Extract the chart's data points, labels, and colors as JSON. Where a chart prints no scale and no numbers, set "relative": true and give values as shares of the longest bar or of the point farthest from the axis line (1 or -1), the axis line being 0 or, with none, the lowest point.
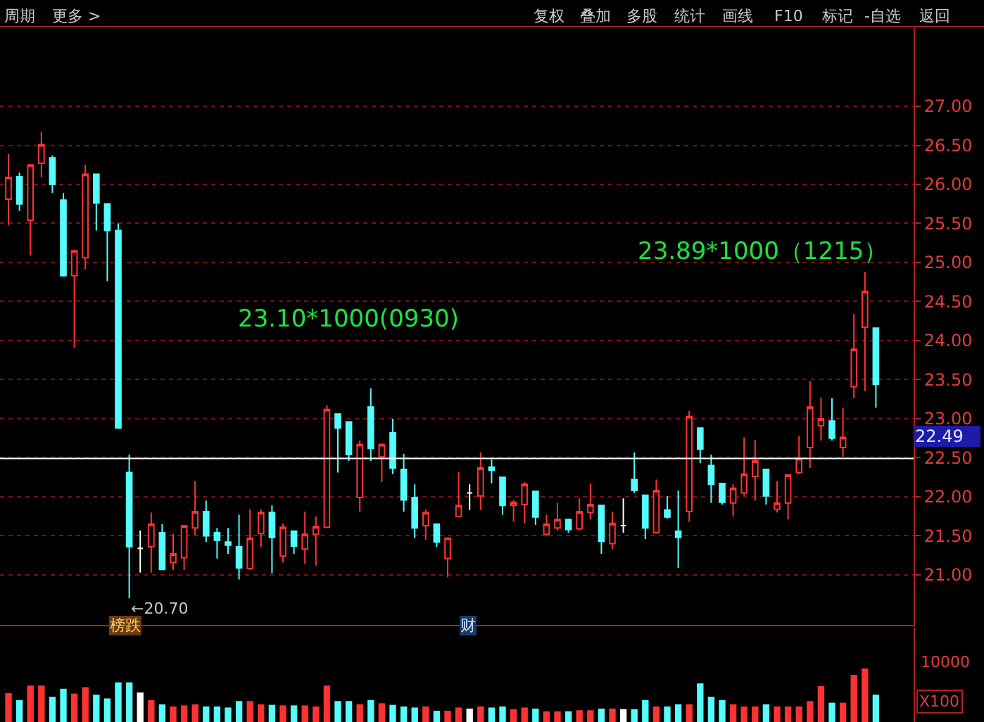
{
  "chart_data": [
    {
      "type": "candlestick",
      "categories": [
        null,
        null,
        null,
        null,
        null,
        null,
        null,
        null,
        null,
        null,
        null,
        null,
        null,
        null,
        null,
        null,
        null,
        null,
        null,
        null,
        null,
        null,
        null,
        null,
        null,
        null,
        null,
        null,
        null,
        null,
        null,
        null,
        null,
        null,
        null,
        null,
        null,
        null,
        null,
        null,
        null,
        null,
        null,
        null,
        null,
        null,
        null,
        null,
        null,
        null,
        null,
        null,
        null,
        null,
        null,
        null,
        null,
        null,
        null,
        null,
        null,
        null,
        null,
        null,
        null,
        null,
        null,
        null,
        null,
        null,
        null,
        null,
        null,
        null,
        null,
        null,
        null,
        null,
        null,
        null
      ],
      "ohlc": [
        [
          25.81,
          26.39,
          25.48,
          26.09
        ],
        [
          26.1,
          26.15,
          25.66,
          25.75
        ],
        [
          25.54,
          26.25,
          25.09,
          26.25
        ],
        [
          26.27,
          26.67,
          26.09,
          26.51
        ],
        [
          26.34,
          26.37,
          25.89,
          26.0
        ],
        [
          25.8,
          25.89,
          24.82,
          24.83
        ],
        [
          24.83,
          25.15,
          23.91,
          25.15
        ],
        [
          25.06,
          26.25,
          24.91,
          26.13
        ],
        [
          26.13,
          26.13,
          25.41,
          25.76
        ],
        [
          25.75,
          25.75,
          24.76,
          25.41
        ],
        [
          25.41,
          25.5,
          22.88,
          22.88
        ],
        [
          22.31,
          22.54,
          20.7,
          21.36
        ],
        [
          21.34,
          21.57,
          21.03,
          21.34
        ],
        [
          21.36,
          21.8,
          21.03,
          21.65
        ],
        [
          21.54,
          21.65,
          21.06,
          21.07
        ],
        [
          21.16,
          21.53,
          21.06,
          21.27
        ],
        [
          21.22,
          21.63,
          21.06,
          21.63
        ],
        [
          21.6,
          22.2,
          21.51,
          21.81
        ],
        [
          21.81,
          21.95,
          21.42,
          21.5
        ],
        [
          21.54,
          21.6,
          21.21,
          21.44
        ],
        [
          21.42,
          21.6,
          21.27,
          21.38
        ],
        [
          21.36,
          21.77,
          20.94,
          21.09
        ],
        [
          21.08,
          21.84,
          21.06,
          21.47
        ],
        [
          21.53,
          21.84,
          21.36,
          21.8
        ],
        [
          21.8,
          21.89,
          21.02,
          21.48
        ],
        [
          21.24,
          21.66,
          21.16,
          21.61
        ],
        [
          21.56,
          21.56,
          21.27,
          21.37
        ],
        [
          21.33,
          21.81,
          21.14,
          21.52
        ],
        [
          21.52,
          21.75,
          21.12,
          21.62
        ],
        [
          21.61,
          23.17,
          21.61,
          23.12
        ],
        [
          23.06,
          23.06,
          22.31,
          22.88
        ],
        [
          22.96,
          22.96,
          22.46,
          22.54
        ],
        [
          21.99,
          22.72,
          21.81,
          22.67
        ],
        [
          23.15,
          23.39,
          22.46,
          22.62
        ],
        [
          22.51,
          22.67,
          22.19,
          22.67
        ],
        [
          22.82,
          23.0,
          22.29,
          22.37
        ],
        [
          22.35,
          22.55,
          21.81,
          21.96
        ],
        [
          21.99,
          22.16,
          21.47,
          21.6
        ],
        [
          21.63,
          21.84,
          21.45,
          21.8
        ],
        [
          21.65,
          21.65,
          21.36,
          21.42
        ],
        [
          21.21,
          21.48,
          20.97,
          21.47
        ],
        [
          21.75,
          22.32,
          21.75,
          21.89
        ],
        [
          22.05,
          22.16,
          21.83,
          22.05
        ],
        [
          22.01,
          22.57,
          21.83,
          22.37
        ],
        [
          22.38,
          22.48,
          22.17,
          22.34
        ],
        [
          22.25,
          22.25,
          21.77,
          21.89
        ],
        [
          21.89,
          21.96,
          21.68,
          21.93
        ],
        [
          21.9,
          22.19,
          21.66,
          22.16
        ],
        [
          22.07,
          22.07,
          21.64,
          21.74
        ],
        [
          21.52,
          21.77,
          21.5,
          21.65
        ],
        [
          21.6,
          21.92,
          21.57,
          21.71
        ],
        [
          21.71,
          21.72,
          21.54,
          21.58
        ],
        [
          21.59,
          21.98,
          21.57,
          21.81
        ],
        [
          21.8,
          22.17,
          21.71,
          21.9
        ],
        [
          21.89,
          21.89,
          21.27,
          21.43
        ],
        [
          21.4,
          21.81,
          21.33,
          21.66
        ],
        [
          21.63,
          21.98,
          21.54,
          21.63
        ],
        [
          22.22,
          22.57,
          22.05,
          22.08
        ],
        [
          22.02,
          22.02,
          21.46,
          21.6
        ],
        [
          21.54,
          22.22,
          21.54,
          22.08
        ],
        [
          21.83,
          22.01,
          21.72,
          21.74
        ],
        [
          21.56,
          22.08,
          21.09,
          21.48
        ],
        [
          21.81,
          23.1,
          21.68,
          23.03
        ],
        [
          22.88,
          22.88,
          22.43,
          22.61
        ],
        [
          22.4,
          22.54,
          21.92,
          22.16
        ],
        [
          22.17,
          22.17,
          21.9,
          21.93
        ],
        [
          21.92,
          22.16,
          21.75,
          22.11
        ],
        [
          22.05,
          22.76,
          22.01,
          22.29
        ],
        [
          22.26,
          22.73,
          21.95,
          22.46
        ],
        [
          22.35,
          22.35,
          21.9,
          22.01
        ],
        [
          21.84,
          22.2,
          21.8,
          21.92
        ],
        [
          21.92,
          22.28,
          21.71,
          22.28
        ],
        [
          22.31,
          22.78,
          22.29,
          22.49
        ],
        [
          22.63,
          23.48,
          22.37,
          23.15
        ],
        [
          22.91,
          23.27,
          22.72,
          23.0
        ],
        [
          22.97,
          23.26,
          22.72,
          22.75
        ],
        [
          22.63,
          23.14,
          22.51,
          22.76
        ],
        [
          23.41,
          24.34,
          23.26,
          23.89
        ],
        [
          24.17,
          24.88,
          23.35,
          24.63
        ],
        [
          24.16,
          24.16,
          23.14,
          23.44
        ]
      ],
      "colors": [
        "#ff3232",
        "#54fcfc",
        "#ff3232",
        "#ff3232",
        "#54fcfc",
        "#54fcfc",
        "#ff3232",
        "#ff3232",
        "#54fcfc",
        "#54fcfc",
        "#54fcfc",
        "#54fcfc",
        "#ffffff",
        "#ff3232",
        "#54fcfc",
        "#ff3232",
        "#ff3232",
        "#ff3232",
        "#54fcfc",
        "#54fcfc",
        "#54fcfc",
        "#54fcfc",
        "#ff3232",
        "#ff3232",
        "#54fcfc",
        "#ff3232",
        "#54fcfc",
        "#ff3232",
        "#ff3232",
        "#ff3232",
        "#54fcfc",
        "#54fcfc",
        "#ff3232",
        "#54fcfc",
        "#ff3232",
        "#54fcfc",
        "#54fcfc",
        "#54fcfc",
        "#ff3232",
        "#54fcfc",
        "#ff3232",
        "#ff3232",
        "#ffffff",
        "#ff3232",
        "#54fcfc",
        "#54fcfc",
        "#ff3232",
        "#ff3232",
        "#54fcfc",
        "#ff3232",
        "#ff3232",
        "#54fcfc",
        "#ff3232",
        "#ff3232",
        "#54fcfc",
        "#ff3232",
        "#ffffff",
        "#54fcfc",
        "#54fcfc",
        "#ff3232",
        "#54fcfc",
        "#54fcfc",
        "#ff3232",
        "#54fcfc",
        "#54fcfc",
        "#54fcfc",
        "#ff3232",
        "#ff3232",
        "#ff3232",
        "#54fcfc",
        "#ff3232",
        "#ff3232",
        "#ff3232",
        "#ff3232",
        "#ff3232",
        "#54fcfc",
        "#ff3232",
        "#ff3232",
        "#ff3232",
        "#54fcfc"
      ],
      "ylim": [
        20.36,
        28.0
      ],
      "yticks": [
        {
          "value": 21,
          "label": "21.00"
        },
        {
          "value": 21.5,
          "label": "21.50"
        },
        {
          "value": 22,
          "label": "22.00"
        },
        {
          "value": 22.5,
          "label": "22.50"
        },
        {
          "value": 23,
          "label": "23.00"
        },
        {
          "value": 23.5,
          "label": "23.50"
        },
        {
          "value": 24,
          "label": "24.00"
        },
        {
          "value": 24.5,
          "label": "24.50"
        },
        {
          "value": 25,
          "label": "25.00"
        },
        {
          "value": 25.5,
          "label": "25.50"
        },
        {
          "value": 26,
          "label": "26.00"
        },
        {
          "value": 26.5,
          "label": "26.50"
        },
        {
          "value": 27,
          "label": "27.00"
        }
      ],
      "tick_labels": "y",
      "grid": "y",
      "ref_lines": [
        {
          "axis": "y",
          "value": 22.49,
          "label": "22.49",
          "color": "#ffffff"
        }
      ],
      "annotations": [
        "23.10*1000(0930)",
        "23.89*1000（1215）",
        "←20.70",
        "榜跌",
        "财",
        "周期",
        "更多 >",
        "复权",
        "叠加",
        "多股",
        "统计",
        "画线",
        "F10",
        "标记",
        "-自选",
        "返回"
      ]
    },
    {
      "type": "bar",
      "relative": true,
      "categories": [
        null,
        null,
        null,
        null,
        null,
        null,
        null,
        null,
        null,
        null,
        null,
        null,
        null,
        null,
        null,
        null,
        null,
        null,
        null,
        null,
        null,
        null,
        null,
        null,
        null,
        null,
        null,
        null,
        null,
        null,
        null,
        null,
        null,
        null,
        null,
        null,
        null,
        null,
        null,
        null,
        null,
        null,
        null,
        null,
        null,
        null,
        null,
        null,
        null,
        null,
        null,
        null,
        null,
        null,
        null,
        null,
        null,
        null,
        null,
        null,
        null,
        null,
        null,
        null,
        null,
        null,
        null,
        null,
        null,
        null,
        null,
        null,
        null,
        null,
        null,
        null,
        null,
        null,
        null,
        null
      ],
      "values": [
        0.54,
        0.41,
        0.68,
        0.68,
        0.47,
        0.62,
        0.53,
        0.65,
        0.51,
        0.44,
        0.74,
        0.74,
        0.55,
        0.41,
        0.33,
        0.29,
        0.31,
        0.33,
        0.29,
        0.29,
        0.27,
        0.39,
        0.39,
        0.33,
        0.32,
        0.31,
        0.31,
        0.31,
        0.29,
        0.68,
        0.39,
        0.39,
        0.33,
        0.41,
        0.35,
        0.32,
        0.29,
        0.27,
        0.29,
        0.21,
        0.21,
        0.27,
        0.25,
        0.29,
        0.27,
        0.29,
        0.24,
        0.27,
        0.25,
        0.2,
        0.2,
        0.2,
        0.22,
        0.22,
        0.25,
        0.25,
        0.24,
        0.24,
        0.41,
        0.29,
        0.29,
        0.33,
        0.33,
        0.72,
        0.47,
        0.41,
        0.33,
        0.29,
        0.29,
        0.33,
        0.29,
        0.29,
        0.29,
        0.39,
        0.67,
        0.36,
        0.36,
        0.88,
        1,
        0.51
      ],
      "colors": [
        "#ff3232",
        "#54fcfc",
        "#ff3232",
        "#ff3232",
        "#54fcfc",
        "#54fcfc",
        "#ff3232",
        "#ff3232",
        "#54fcfc",
        "#54fcfc",
        "#54fcfc",
        "#54fcfc",
        "#ffffff",
        "#ff3232",
        "#54fcfc",
        "#ff3232",
        "#ff3232",
        "#ff3232",
        "#54fcfc",
        "#54fcfc",
        "#54fcfc",
        "#54fcfc",
        "#ff3232",
        "#ff3232",
        "#54fcfc",
        "#ff3232",
        "#54fcfc",
        "#ff3232",
        "#ff3232",
        "#ff3232",
        "#54fcfc",
        "#54fcfc",
        "#ff3232",
        "#54fcfc",
        "#ff3232",
        "#54fcfc",
        "#54fcfc",
        "#54fcfc",
        "#ff3232",
        "#54fcfc",
        "#ff3232",
        "#ff3232",
        "#ffffff",
        "#ff3232",
        "#54fcfc",
        "#54fcfc",
        "#ff3232",
        "#ff3232",
        "#54fcfc",
        "#ff3232",
        "#ff3232",
        "#54fcfc",
        "#ff3232",
        "#ff3232",
        "#54fcfc",
        "#ff3232",
        "#ffffff",
        "#54fcfc",
        "#54fcfc",
        "#ff3232",
        "#54fcfc",
        "#54fcfc",
        "#ff3232",
        "#54fcfc",
        "#54fcfc",
        "#54fcfc",
        "#ff3232",
        "#ff3232",
        "#ff3232",
        "#54fcfc",
        "#ff3232",
        "#ff3232",
        "#ff3232",
        "#ff3232",
        "#ff3232",
        "#54fcfc",
        "#ff3232",
        "#ff3232",
        "#ff3232",
        "#54fcfc"
      ],
      "annotations": [
        "10000",
        "X100"
      ]
    }
  ]
}
